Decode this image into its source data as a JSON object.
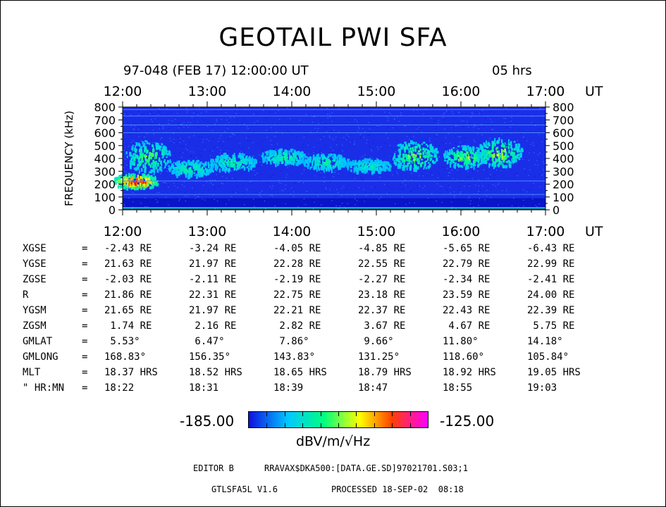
{
  "title": "GEOTAIL PWI SFA",
  "date_line": "97-048 (FEB 17) 12:00:00 UT",
  "duration": "05 hrs",
  "chart_data": {
    "type": "heatmap",
    "title": "GEOTAIL PWI SFA",
    "ylabel": "FREQUENCY (kHz)",
    "y_ticks": [
      "800",
      "700",
      "600",
      "500",
      "400",
      "300",
      "200",
      "100",
      "0"
    ],
    "y_tick_values": [
      800,
      700,
      600,
      500,
      400,
      300,
      200,
      100,
      0
    ],
    "ylim": [
      0,
      800
    ],
    "x_ticks": [
      "12:00",
      "13:00",
      "14:00",
      "15:00",
      "16:00",
      "17:00"
    ],
    "x_unit": "UT",
    "xlim": [
      "12:00",
      "17:00"
    ],
    "colorscale": {
      "min_label": "-185.00",
      "max_label": "-125.00",
      "min": -185.0,
      "max": -125.0,
      "unit": "dBV/m/√Hz",
      "colors": [
        "#1010e0",
        "#00c8ff",
        "#00ff80",
        "#ffff00",
        "#ff4000",
        "#ff00ff"
      ]
    },
    "emission_blobs": [
      {
        "t_hr": 12.15,
        "f_center": 230,
        "f_spread": 120,
        "intensity": 0.95
      },
      {
        "t_hr": 12.3,
        "f_center": 420,
        "f_spread": 250,
        "intensity": 0.45
      },
      {
        "t_hr": 12.8,
        "f_center": 330,
        "f_spread": 130,
        "intensity": 0.35
      },
      {
        "t_hr": 13.3,
        "f_center": 380,
        "f_spread": 140,
        "intensity": 0.35
      },
      {
        "t_hr": 13.9,
        "f_center": 420,
        "f_spread": 120,
        "intensity": 0.35
      },
      {
        "t_hr": 14.4,
        "f_center": 380,
        "f_spread": 130,
        "intensity": 0.32
      },
      {
        "t_hr": 14.9,
        "f_center": 350,
        "f_spread": 110,
        "intensity": 0.28
      },
      {
        "t_hr": 15.45,
        "f_center": 430,
        "f_spread": 230,
        "intensity": 0.5
      },
      {
        "t_hr": 16.05,
        "f_center": 420,
        "f_spread": 170,
        "intensity": 0.5
      },
      {
        "t_hr": 16.45,
        "f_center": 450,
        "f_spread": 230,
        "intensity": 0.52
      }
    ],
    "horizontal_lines_khz": [
      120,
      225,
      600,
      660,
      730,
      780
    ]
  },
  "params": {
    "times": [
      "12:00",
      "13:00",
      "14:00",
      "15:00",
      "16:00",
      "17:00"
    ],
    "rows": [
      {
        "label": "XGSE",
        "vals": [
          "-2.43 RE",
          "-3.24 RE",
          "-4.05 RE",
          "-4.85 RE",
          "-5.65 RE",
          "-6.43 RE"
        ]
      },
      {
        "label": "YGSE",
        "vals": [
          "21.63 RE",
          "21.97 RE",
          "22.28 RE",
          "22.55 RE",
          "22.79 RE",
          "22.99 RE"
        ]
      },
      {
        "label": "ZGSE",
        "vals": [
          "-2.03 RE",
          "-2.11 RE",
          "-2.19 RE",
          "-2.27 RE",
          "-2.34 RE",
          "-2.41 RE"
        ]
      },
      {
        "label": "R",
        "vals": [
          "21.86 RE",
          "22.31 RE",
          "22.75 RE",
          "23.18 RE",
          "23.59 RE",
          "24.00 RE"
        ]
      },
      {
        "label": "YGSM",
        "vals": [
          "21.65 RE",
          "21.97 RE",
          "22.21 RE",
          "22.37 RE",
          "22.43 RE",
          "22.39 RE"
        ]
      },
      {
        "label": "ZGSM",
        "vals": [
          " 1.74 RE",
          " 2.16 RE",
          " 2.82 RE",
          " 3.67 RE",
          " 4.67 RE",
          " 5.75 RE"
        ]
      },
      {
        "label": "GMLAT",
        "vals": [
          " 5.53°",
          " 6.47°",
          " 7.86°",
          " 9.66°",
          "11.80°",
          "14.18°"
        ]
      },
      {
        "label": "GMLONG",
        "vals": [
          "168.83°",
          "156.35°",
          "143.83°",
          "131.25°",
          "118.60°",
          "105.84°"
        ]
      },
      {
        "label": "MLT",
        "vals": [
          "18.37 HRS",
          "18.52 HRS",
          "18.65 HRS",
          "18.79 HRS",
          "18.92 HRS",
          "19.05 HRS"
        ]
      },
      {
        "label": "\" HR:MN",
        "vals": [
          "18:22",
          "18:31",
          "18:39",
          "18:47",
          "18:55",
          "19:03"
        ]
      }
    ]
  },
  "footer": {
    "editor": "EDITOR B",
    "path": "RRAVAX$DKA500:[DATA.GE.SD]97021701.S03;1",
    "version": "GTLSFA5L V1.6",
    "processed": "PROCESSED 18-SEP-02  08:18"
  }
}
